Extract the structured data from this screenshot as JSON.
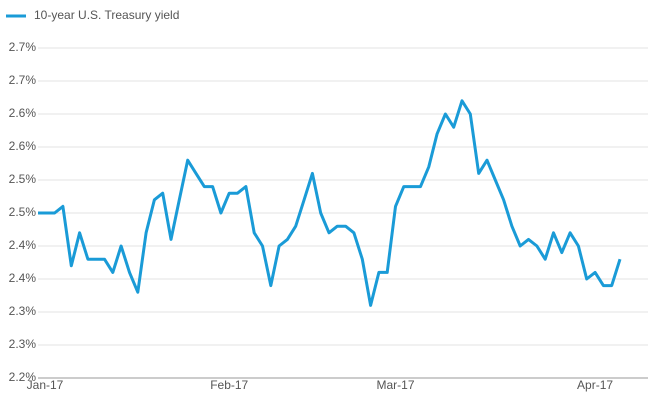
{
  "chart_data": {
    "type": "line",
    "categories": [
      "Jan-17",
      null,
      null,
      null,
      null,
      null,
      null,
      null,
      null,
      null,
      null,
      null,
      null,
      null,
      null,
      null,
      null,
      null,
      null,
      null,
      null,
      null,
      null,
      "Feb-17",
      null,
      null,
      null,
      null,
      null,
      null,
      null,
      null,
      null,
      null,
      null,
      null,
      null,
      null,
      null,
      null,
      null,
      null,
      null,
      "Mar-17",
      null,
      null,
      null,
      null,
      null,
      null,
      null,
      null,
      null,
      null,
      null,
      null,
      null,
      null,
      null,
      null,
      null,
      null,
      null,
      null,
      null,
      null,
      null,
      "Apr-17",
      null,
      null,
      null
    ],
    "series": [
      {
        "name": "10-year U.S. Treasury yield",
        "color": "#1a9bd7",
        "values": [
          2.45,
          2.45,
          2.45,
          2.46,
          2.37,
          2.42,
          2.38,
          2.38,
          2.38,
          2.36,
          2.4,
          2.36,
          2.33,
          2.42,
          2.47,
          2.48,
          2.41,
          2.47,
          2.53,
          2.51,
          2.49,
          2.49,
          2.45,
          2.48,
          2.48,
          2.49,
          2.42,
          2.4,
          2.34,
          2.4,
          2.41,
          2.43,
          2.47,
          2.51,
          2.45,
          2.42,
          2.43,
          2.43,
          2.42,
          2.38,
          2.31,
          2.36,
          2.36,
          2.46,
          2.49,
          2.49,
          2.49,
          2.52,
          2.57,
          2.6,
          2.58,
          2.62,
          2.6,
          2.51,
          2.53,
          2.5,
          2.47,
          2.43,
          2.4,
          2.41,
          2.4,
          2.38,
          2.42,
          2.39,
          2.42,
          2.4,
          2.35,
          2.36,
          2.34,
          2.34,
          2.38
        ]
      }
    ],
    "ylim": [
      2.2,
      2.7
    ],
    "yticks": [
      {
        "value": 2.2,
        "label": "2.2%"
      },
      {
        "value": 2.25,
        "label": "2.3%"
      },
      {
        "value": 2.3,
        "label": "2.3%"
      },
      {
        "value": 2.35,
        "label": "2.4%"
      },
      {
        "value": 2.4,
        "label": "2.4%"
      },
      {
        "value": 2.45,
        "label": "2.5%"
      },
      {
        "value": 2.5,
        "label": "2.5%"
      },
      {
        "value": 2.55,
        "label": "2.6%"
      },
      {
        "value": 2.6,
        "label": "2.6%"
      },
      {
        "value": 2.65,
        "label": "2.7%"
      },
      {
        "value": 2.7,
        "label": "2.7%"
      }
    ],
    "grid": true,
    "legend": "top-left"
  }
}
